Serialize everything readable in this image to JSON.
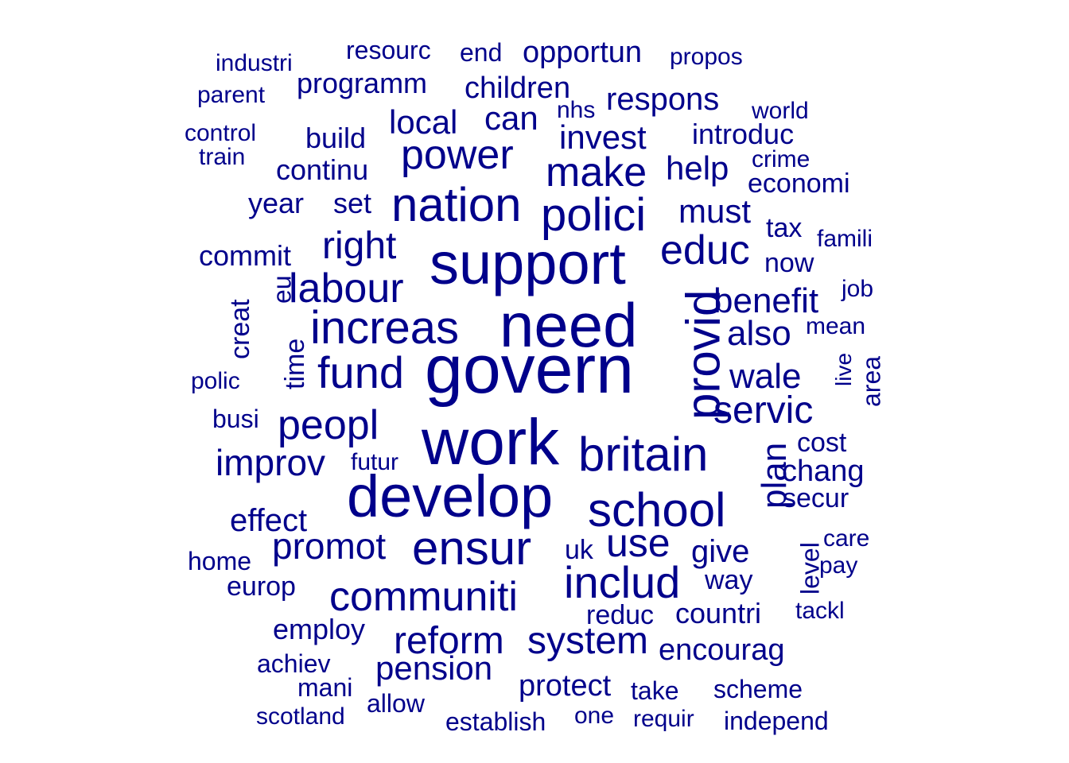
{
  "color": "#00008B",
  "words": [
    {
      "text": "govern",
      "vertical": false
    },
    {
      "text": "need",
      "vertical": false
    },
    {
      "text": "work",
      "vertical": false
    },
    {
      "text": "support",
      "vertical": false
    },
    {
      "text": "develop",
      "vertical": false
    },
    {
      "text": "provid",
      "vertical": true
    },
    {
      "text": "increas",
      "vertical": false
    },
    {
      "text": "britain",
      "vertical": false
    },
    {
      "text": "school",
      "vertical": false
    },
    {
      "text": "nation",
      "vertical": false
    },
    {
      "text": "ensur",
      "vertical": false
    },
    {
      "text": "communiti",
      "vertical": false
    },
    {
      "text": "polici",
      "vertical": false
    },
    {
      "text": "fund",
      "vertical": false
    },
    {
      "text": "includ",
      "vertical": false
    },
    {
      "text": "power",
      "vertical": false
    },
    {
      "text": "labour",
      "vertical": false
    },
    {
      "text": "make",
      "vertical": false
    },
    {
      "text": "peopl",
      "vertical": false
    },
    {
      "text": "use",
      "vertical": false
    },
    {
      "text": "educ",
      "vertical": false
    },
    {
      "text": "reform",
      "vertical": false
    },
    {
      "text": "system",
      "vertical": false
    },
    {
      "text": "servic",
      "vertical": false
    },
    {
      "text": "improv",
      "vertical": false
    },
    {
      "text": "promot",
      "vertical": false
    },
    {
      "text": "right",
      "vertical": false
    },
    {
      "text": "benefit",
      "vertical": false
    },
    {
      "text": "wale",
      "vertical": false
    },
    {
      "text": "also",
      "vertical": false
    },
    {
      "text": "plan",
      "vertical": true
    },
    {
      "text": "pension",
      "vertical": false
    },
    {
      "text": "local",
      "vertical": false
    },
    {
      "text": "invest",
      "vertical": false
    },
    {
      "text": "must",
      "vertical": false
    },
    {
      "text": "help",
      "vertical": false
    },
    {
      "text": "can",
      "vertical": false
    },
    {
      "text": "protect",
      "vertical": false
    },
    {
      "text": "give",
      "vertical": false
    },
    {
      "text": "respons",
      "vertical": false
    },
    {
      "text": "effect",
      "vertical": false
    },
    {
      "text": "encourag",
      "vertical": false
    },
    {
      "text": "children",
      "vertical": false
    },
    {
      "text": "opportun",
      "vertical": false
    },
    {
      "text": "chang",
      "vertical": false
    },
    {
      "text": "employ",
      "vertical": false
    },
    {
      "text": "continu",
      "vertical": false
    },
    {
      "text": "countri",
      "vertical": false
    },
    {
      "text": "programm",
      "vertical": false
    },
    {
      "text": "introduc",
      "vertical": false
    },
    {
      "text": "build",
      "vertical": false
    },
    {
      "text": "commit",
      "vertical": false
    },
    {
      "text": "set",
      "vertical": false
    },
    {
      "text": "year",
      "vertical": false
    },
    {
      "text": "time",
      "vertical": true
    },
    {
      "text": "creat",
      "vertical": true
    },
    {
      "text": "economi",
      "vertical": false
    },
    {
      "text": "now",
      "vertical": false
    },
    {
      "text": "level",
      "vertical": true
    },
    {
      "text": "reduc",
      "vertical": false
    },
    {
      "text": "europ",
      "vertical": false
    },
    {
      "text": "tax",
      "vertical": false
    },
    {
      "text": "cost",
      "vertical": false
    },
    {
      "text": "secur",
      "vertical": false
    },
    {
      "text": "eu",
      "vertical": true
    },
    {
      "text": "way",
      "vertical": false
    },
    {
      "text": "uk",
      "vertical": false
    },
    {
      "text": "take",
      "vertical": false
    },
    {
      "text": "scheme",
      "vertical": false
    },
    {
      "text": "establish",
      "vertical": false
    },
    {
      "text": "achiev",
      "vertical": false
    },
    {
      "text": "area",
      "vertical": true
    },
    {
      "text": "mani",
      "vertical": false
    },
    {
      "text": "allow",
      "vertical": false
    },
    {
      "text": "busi",
      "vertical": false
    },
    {
      "text": "resourc",
      "vertical": false
    },
    {
      "text": "mean",
      "vertical": false
    },
    {
      "text": "futur",
      "vertical": false
    },
    {
      "text": "requir",
      "vertical": false
    },
    {
      "text": "independ",
      "vertical": false
    },
    {
      "text": "home",
      "vertical": false
    },
    {
      "text": "polic",
      "vertical": false
    },
    {
      "text": "world",
      "vertical": false
    },
    {
      "text": "crime",
      "vertical": false
    },
    {
      "text": "end",
      "vertical": false
    },
    {
      "text": "propos",
      "vertical": false
    },
    {
      "text": "control",
      "vertical": false
    },
    {
      "text": "parent",
      "vertical": false
    },
    {
      "text": "industri",
      "vertical": false
    },
    {
      "text": "scotland",
      "vertical": false
    },
    {
      "text": "one",
      "vertical": false
    },
    {
      "text": "nhs",
      "vertical": false
    },
    {
      "text": "tackl",
      "vertical": false
    },
    {
      "text": "pay",
      "vertical": false
    },
    {
      "text": "care",
      "vertical": false
    },
    {
      "text": "job",
      "vertical": false
    },
    {
      "text": "famili",
      "vertical": false
    },
    {
      "text": "live",
      "vertical": true
    },
    {
      "text": "train",
      "vertical": false
    }
  ]
}
